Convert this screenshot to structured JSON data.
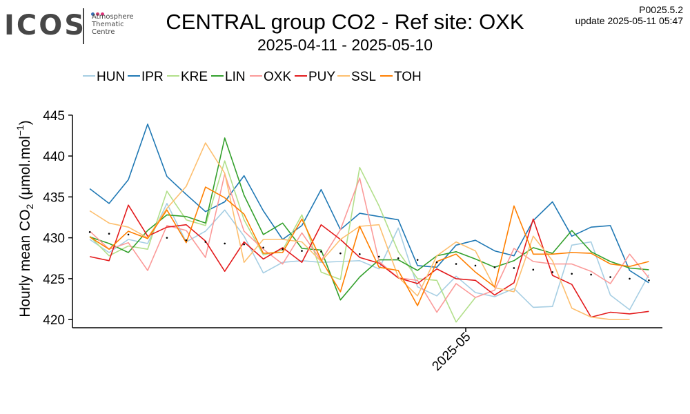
{
  "logo": {
    "wordmark": "ICOS",
    "lines": [
      "Atmosphere",
      "Thematic",
      "Centre"
    ],
    "dot_colors": [
      "#3a6fb5",
      "#d03a6b",
      "#e0307a"
    ]
  },
  "header": {
    "title": "CENTRAL group CO2 - Ref site: OXK",
    "subtitle": "2025-04-11 - 2025-05-10",
    "version": "P0025.5.2",
    "update_label": "update",
    "update_time": "2025-05-11 05:47"
  },
  "chart_data": {
    "type": "line",
    "ylabel": {
      "main": "Hourly mean  CO",
      "sub": "2",
      "unit_open": " (μmol.mol",
      "sup": "−1",
      "unit_close": ")"
    },
    "ylim": [
      419,
      446
    ],
    "yticks": [
      420,
      425,
      430,
      435,
      440,
      445
    ],
    "x_range": [
      "2025-04-11",
      "2025-05-10"
    ],
    "xticks": [
      {
        "value": "2025-05-01",
        "label": "2025-05"
      }
    ],
    "grid": false,
    "legend_position": "top",
    "x": [
      "2025-04-11",
      "2025-04-12",
      "2025-04-13",
      "2025-04-14",
      "2025-04-15",
      "2025-04-16",
      "2025-04-17",
      "2025-04-18",
      "2025-04-19",
      "2025-04-20",
      "2025-04-21",
      "2025-04-22",
      "2025-04-23",
      "2025-04-24",
      "2025-04-25",
      "2025-04-26",
      "2025-04-27",
      "2025-04-28",
      "2025-04-29",
      "2025-04-30",
      "2025-05-01",
      "2025-05-02",
      "2025-05-03",
      "2025-05-04",
      "2025-05-05",
      "2025-05-06",
      "2025-05-07",
      "2025-05-08",
      "2025-05-09",
      "2025-05-10"
    ],
    "series": [
      {
        "name": "HUN",
        "color": "#a6cee3",
        "values": [
          429.8,
          428.2,
          429.8,
          429.3,
          434.2,
          429.5,
          430.8,
          433.4,
          430.2,
          425.7,
          427.0,
          427.2,
          427.0,
          427.1,
          427.2,
          426.2,
          431.2,
          424.0,
          422.9,
          425.3,
          423.3,
          422.8,
          423.8,
          421.5,
          421.6,
          429.1,
          429.5,
          423.0,
          421.2,
          425.5
        ]
      },
      {
        "name": "IPR",
        "color": "#1f78b4",
        "values": [
          436.0,
          434.2,
          437.1,
          443.9,
          437.5,
          435.3,
          433.2,
          434.4,
          437.6,
          433.3,
          429.8,
          431.5,
          435.9,
          431.0,
          433.0,
          432.6,
          432.2,
          426.6,
          426.4,
          429.1,
          429.7,
          428.4,
          427.8,
          432.1,
          434.4,
          430.2,
          431.3,
          431.5,
          426.0,
          424.5
        ]
      },
      {
        "name": "KRE",
        "color": "#b2df8a",
        "values": [
          430.2,
          427.8,
          429.0,
          428.6,
          435.7,
          432.2,
          431.5,
          439.4,
          432.2,
          427.9,
          428.5,
          432.8,
          425.8,
          424.9,
          438.6,
          433.9,
          428.3,
          425.0,
          424.8,
          419.7,
          422.7,
          null,
          null,
          null,
          null,
          null,
          null,
          null,
          null,
          null
        ]
      },
      {
        "name": "LIN",
        "color": "#33a02c",
        "values": [
          430.1,
          429.3,
          428.2,
          430.9,
          432.8,
          432.6,
          431.8,
          442.2,
          435.2,
          430.4,
          431.8,
          428.7,
          428.5,
          422.4,
          425.2,
          427.3,
          427.3,
          426.0,
          427.8,
          428.3,
          427.4,
          426.4,
          427.2,
          428.8,
          428.1,
          430.9,
          428.3,
          427.1,
          426.3,
          426.1
        ]
      },
      {
        "name": "OXK",
        "color": "#fb9a99",
        "values": [
          430.8,
          428.6,
          429.4,
          426.0,
          431.5,
          430.9,
          427.6,
          437.8,
          430.8,
          428.6,
          426.8,
          430.6,
          427.2,
          431.0,
          437.3,
          427.1,
          425.1,
          424.8,
          420.9,
          424.4,
          422.7,
          423.6,
          428.7,
          427.1,
          426.8,
          426.8,
          425.9,
          424.4,
          428.0,
          425.1
        ]
      },
      {
        "name": "PUY",
        "color": "#e31a1c",
        "values": [
          427.7,
          427.2,
          434.0,
          430.2,
          431.3,
          431.6,
          429.6,
          425.9,
          429.5,
          427.4,
          428.8,
          427.0,
          431.6,
          429.8,
          427.6,
          426.9,
          425.1,
          424.4,
          426.2,
          425.0,
          424.8,
          423.0,
          424.5,
          432.3,
          425.4,
          424.3,
          420.3,
          420.9,
          420.7,
          421.0
        ]
      },
      {
        "name": "SSL",
        "color": "#fdbf6f",
        "values": [
          433.3,
          431.8,
          431.3,
          430.0,
          433.6,
          436.3,
          441.6,
          437.9,
          427.0,
          429.8,
          429.8,
          429.5,
          427.1,
          429.8,
          431.4,
          431.6,
          425.2,
          422.9,
          427.8,
          429.5,
          428.4,
          423.9,
          423.4,
          430.2,
          427.2,
          421.4,
          420.3,
          420.0,
          420.0,
          null
        ]
      },
      {
        "name": "TOH",
        "color": "#ff7f00",
        "values": [
          430.1,
          428.6,
          430.8,
          429.9,
          433.4,
          429.4,
          436.2,
          434.9,
          432.9,
          428.1,
          428.2,
          432.3,
          427.3,
          423.4,
          431.4,
          426.4,
          426.0,
          421.7,
          427.1,
          428.0,
          425.8,
          424.0,
          433.9,
          428.0,
          428.0,
          428.2,
          428.1,
          426.8,
          426.5,
          427.1
        ]
      },
      {
        "name": "",
        "color": "#000000",
        "dots": true,
        "values": [
          430.7,
          430.5,
          430.4,
          null,
          430.0,
          429.7,
          429.5,
          429.3,
          429.2,
          428.8,
          428.6,
          428.4,
          428.3,
          428.1,
          428.0,
          427.7,
          427.5,
          427.3,
          427.0,
          426.8,
          426.6,
          426.4,
          426.3,
          426.1,
          425.8,
          425.6,
          425.5,
          425.2,
          425.0,
          424.8
        ]
      }
    ]
  }
}
